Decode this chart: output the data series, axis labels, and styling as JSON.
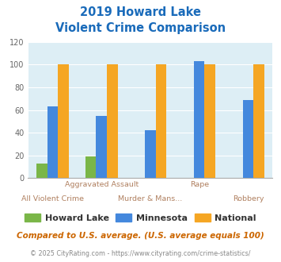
{
  "title_line1": "2019 Howard Lake",
  "title_line2": "Violent Crime Comparison",
  "categories": [
    "All Violent Crime",
    "Aggravated Assault",
    "Murder & Mans...",
    "Rape",
    "Robbery"
  ],
  "howard_lake": [
    13,
    19,
    0,
    0,
    0
  ],
  "minnesota": [
    63,
    55,
    42,
    103,
    69
  ],
  "national": [
    100,
    100,
    100,
    100,
    100
  ],
  "howard_lake_color": "#7ab648",
  "minnesota_color": "#4488dd",
  "national_color": "#f5a623",
  "title_color": "#1a6bba",
  "bg_color": "#ddeef5",
  "ylim": [
    0,
    120
  ],
  "yticks": [
    0,
    20,
    40,
    60,
    80,
    100,
    120
  ],
  "footnote": "Compared to U.S. average. (U.S. average equals 100)",
  "copyright": "© 2025 CityRating.com - https://www.cityrating.com/crime-statistics/",
  "legend_labels": [
    "Howard Lake",
    "Minnesota",
    "National"
  ],
  "bar_width": 0.22,
  "x_top_labels": [
    "",
    "Aggravated Assault",
    "",
    "Rape",
    ""
  ],
  "x_bot_labels": [
    "All Violent Crime",
    "",
    "Murder & Mans...",
    "",
    "Robbery"
  ]
}
